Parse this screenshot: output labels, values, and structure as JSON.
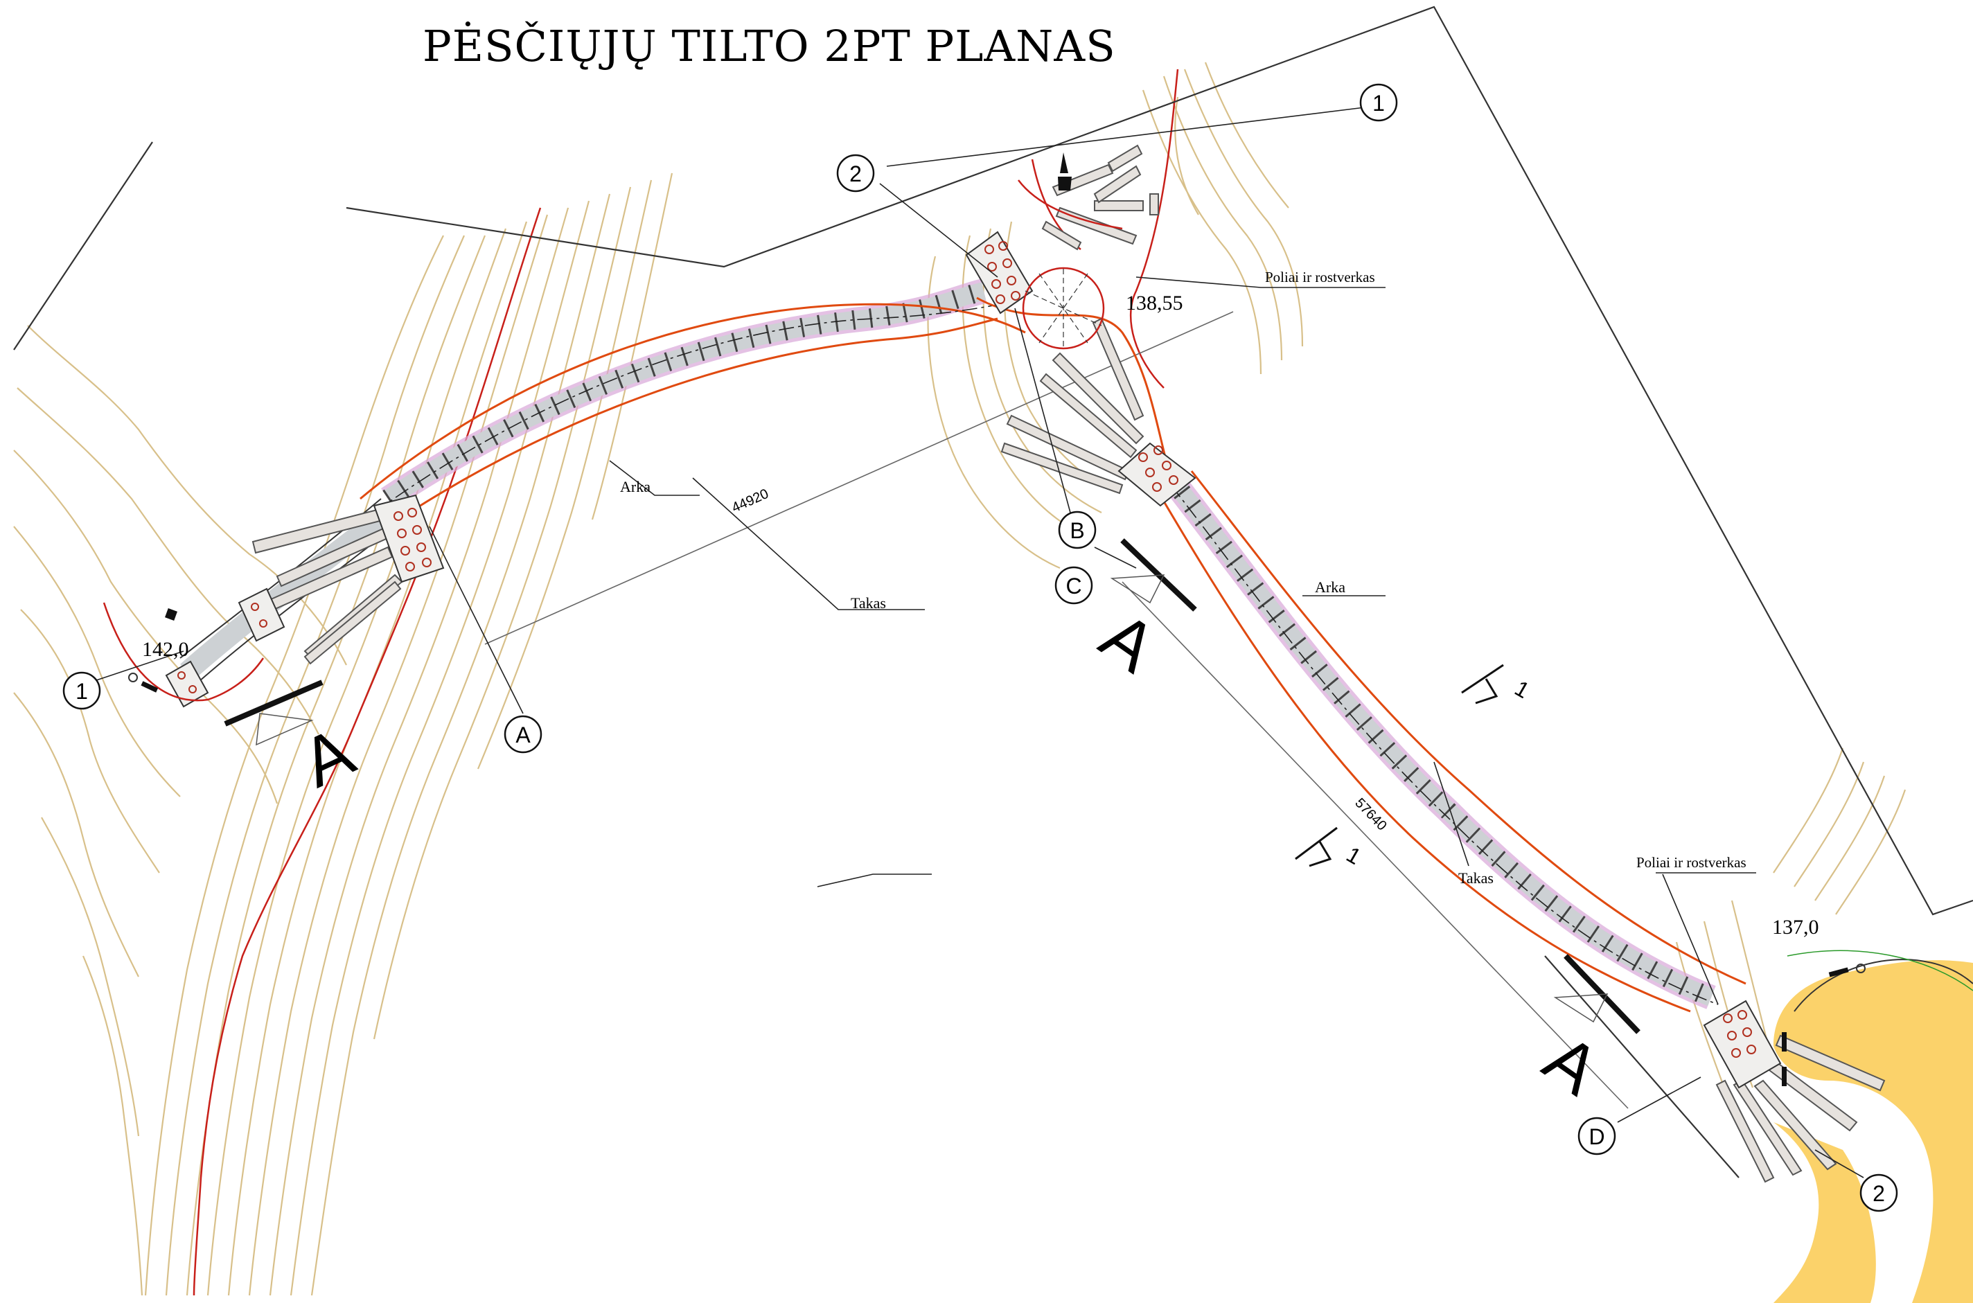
{
  "title": "PĖSČIŲJŲ TILTO 2PT  PLANAS",
  "elevations": {
    "left": "142,0",
    "middle": "138,55",
    "right": "137,0"
  },
  "dimensions": {
    "span_1": "44920",
    "span_2": "57640"
  },
  "labels": {
    "arka_1": "Arka",
    "arka_2": "Arka",
    "takas_1": "Takas",
    "takas_2": "Takas",
    "poliai_1": "Poliai ir rostverkas",
    "poliai_2": "Poliai ir rostverkas"
  },
  "axis_markers": {
    "a": "A",
    "b": "B",
    "c": "C",
    "d": "D"
  },
  "pile_markers": {
    "left_1": "1",
    "top_1": "1",
    "top_2": "2",
    "bottom_2": "2"
  },
  "section_marks": {
    "left": "A",
    "middle": "A",
    "right": "A"
  },
  "slope_marks": {
    "upper": "1",
    "lower": "1"
  },
  "colors": {
    "contour": "#d8c08a",
    "contour_light": "#e6d6ae",
    "red_line": "#c8201a",
    "arch": "#e04a10",
    "deck_fill": "#cfd3d6",
    "deck_pink": "#d9a6d9",
    "ground_fill": "#fbd26a"
  }
}
